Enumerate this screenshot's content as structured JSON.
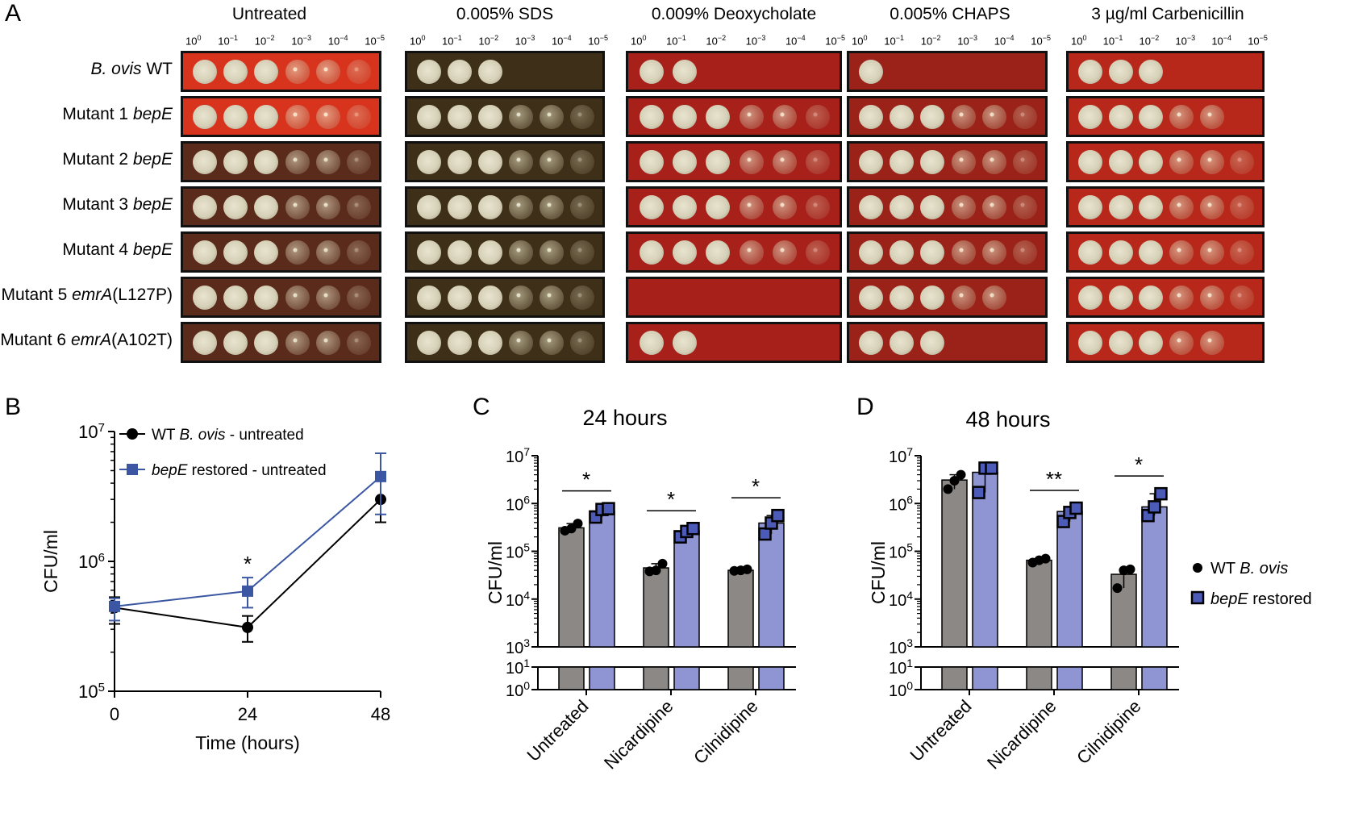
{
  "panels": {
    "A": "A",
    "B": "B",
    "C": "C",
    "D": "D"
  },
  "panelA": {
    "conditions": [
      "Untreated",
      "0.005% SDS",
      "0.009% Deoxycholate",
      "0.005% CHAPS",
      "3 µg/ml Carbenicillin"
    ],
    "dilutions": [
      "10",
      "10",
      "10",
      "10",
      "10",
      "10"
    ],
    "dilution_exponents": [
      "0",
      "−1",
      "−2",
      "−3",
      "−4",
      "−5"
    ],
    "strains": [
      {
        "prefix": "",
        "italic": "B. ovis",
        "suffix": " WT"
      },
      {
        "prefix": "Mutant 1 ",
        "italic": "bepE",
        "suffix": ""
      },
      {
        "prefix": "Mutant 2 ",
        "italic": "bepE",
        "suffix": ""
      },
      {
        "prefix": "Mutant 3 ",
        "italic": "bepE",
        "suffix": ""
      },
      {
        "prefix": "Mutant 4 ",
        "italic": "bepE",
        "suffix": ""
      },
      {
        "prefix": "Mutant 5 ",
        "italic": "emrA",
        "suffix": "(L127P)"
      },
      {
        "prefix": "Mutant 6 ",
        "italic": "emrA",
        "suffix": "(A102T)"
      }
    ],
    "growth_spots_visible": [
      [
        6,
        6,
        6,
        6,
        6,
        6,
        6
      ],
      [
        3,
        6,
        6,
        6,
        6,
        6,
        6
      ],
      [
        2,
        6,
        6,
        6,
        6,
        0,
        2
      ],
      [
        1,
        6,
        6,
        6,
        6,
        5,
        3
      ],
      [
        3,
        5,
        6,
        6,
        6,
        6,
        5
      ]
    ],
    "plate_colors": {
      "untreated_top": "#d8331d",
      "untreated": "#5a2a1a",
      "sds": "#3e3018",
      "deoxycholate": "#a8201a",
      "chaps": "#9a2218",
      "carbenicillin": "#b8281a"
    }
  },
  "chart_data": [
    {
      "panel": "B",
      "type": "line",
      "xlabel": "Time (hours)",
      "ylabel": "CFU/ml",
      "log_y": true,
      "ylim": [
        100000,
        10000000
      ],
      "xlim": [
        0,
        48
      ],
      "x_ticks": [
        "0",
        "24",
        "48"
      ],
      "y_ticks": [
        {
          "base": "10",
          "exp": "5"
        },
        {
          "base": "10",
          "exp": "6"
        },
        {
          "base": "10",
          "exp": "7"
        }
      ],
      "series": [
        {
          "name_prefix": "WT ",
          "name_italic": "B. ovis",
          "name_suffix": " - untreated",
          "color": "#000000",
          "marker": "circle",
          "x": [
            0,
            24,
            48
          ],
          "y": [
            440000,
            310000,
            3000000
          ],
          "err_low": [
            330000,
            240000,
            2000000
          ],
          "err_high": [
            530000,
            380000,
            4200000
          ]
        },
        {
          "name_prefix": "",
          "name_italic": "bepE",
          "name_suffix": " restored - untreated",
          "color": "#3b57a3",
          "marker": "square",
          "x": [
            0,
            24,
            48
          ],
          "y": [
            450000,
            590000,
            4500000
          ],
          "err_low": [
            350000,
            440000,
            2300000
          ],
          "err_high": [
            520000,
            750000,
            6800000
          ]
        }
      ],
      "annotations": [
        {
          "x": 24,
          "text": "*"
        }
      ]
    },
    {
      "panel": "C",
      "type": "bar",
      "title": "24 hours",
      "ylabel": "CFU/ml",
      "log_y": true,
      "categories": [
        "Untreated",
        "Nicardipine",
        "Cilnidipine"
      ],
      "y_ticks_upper": [
        {
          "base": "10",
          "exp": "3"
        },
        {
          "base": "10",
          "exp": "4"
        },
        {
          "base": "10",
          "exp": "5"
        },
        {
          "base": "10",
          "exp": "6"
        },
        {
          "base": "10",
          "exp": "7"
        }
      ],
      "y_ticks_lower": [
        {
          "base": "10",
          "exp": "0"
        },
        {
          "base": "10",
          "exp": "1"
        }
      ],
      "series": [
        {
          "name": "WT B. ovis",
          "color": "#8c8885",
          "values": [
            310000,
            45000,
            40000
          ],
          "points": [
            [
              270000,
              300000,
              380000
            ],
            [
              38000,
              40000,
              55000
            ],
            [
              39000,
              40000,
              42000
            ]
          ]
        },
        {
          "name": "bepE restored",
          "color": "#8f95d3",
          "values": [
            700000,
            270000,
            390000
          ],
          "points": [
            [
              520000,
              750000,
              780000
            ],
            [
              200000,
              260000,
              300000
            ],
            [
              230000,
              390000,
              560000
            ]
          ]
        }
      ],
      "significance": [
        "*",
        "*",
        "*"
      ]
    },
    {
      "panel": "D",
      "type": "bar",
      "title": "48 hours",
      "ylabel": "CFU/ml",
      "log_y": true,
      "categories": [
        "Untreated",
        "Nicardipine",
        "Cilnidipine"
      ],
      "y_ticks_upper": [
        {
          "base": "10",
          "exp": "3"
        },
        {
          "base": "10",
          "exp": "4"
        },
        {
          "base": "10",
          "exp": "5"
        },
        {
          "base": "10",
          "exp": "6"
        },
        {
          "base": "10",
          "exp": "7"
        }
      ],
      "y_ticks_lower": [
        {
          "base": "10",
          "exp": "0"
        },
        {
          "base": "10",
          "exp": "1"
        }
      ],
      "series": [
        {
          "name": "WT B. ovis",
          "color": "#8c8885",
          "values": [
            3100000,
            65000,
            33000
          ],
          "points": [
            [
              2000000,
              3000000,
              4000000
            ],
            [
              58000,
              65000,
              70000
            ],
            [
              17000,
              40000,
              42000
            ]
          ]
        },
        {
          "name": "bepE restored",
          "color": "#8f95d3",
          "values": [
            4500000,
            680000,
            850000
          ],
          "points": [
            [
              1700000,
              5500000,
              5500000
            ],
            [
              420000,
              650000,
              800000
            ],
            [
              560000,
              850000,
              1600000
            ]
          ]
        }
      ],
      "significance": [
        "",
        "**",
        "*"
      ]
    }
  ],
  "legend_bars": [
    {
      "prefix": "WT ",
      "italic": "B. ovis"
    },
    {
      "prefix": "",
      "italic": "bepE",
      "suffix": " restored"
    }
  ]
}
